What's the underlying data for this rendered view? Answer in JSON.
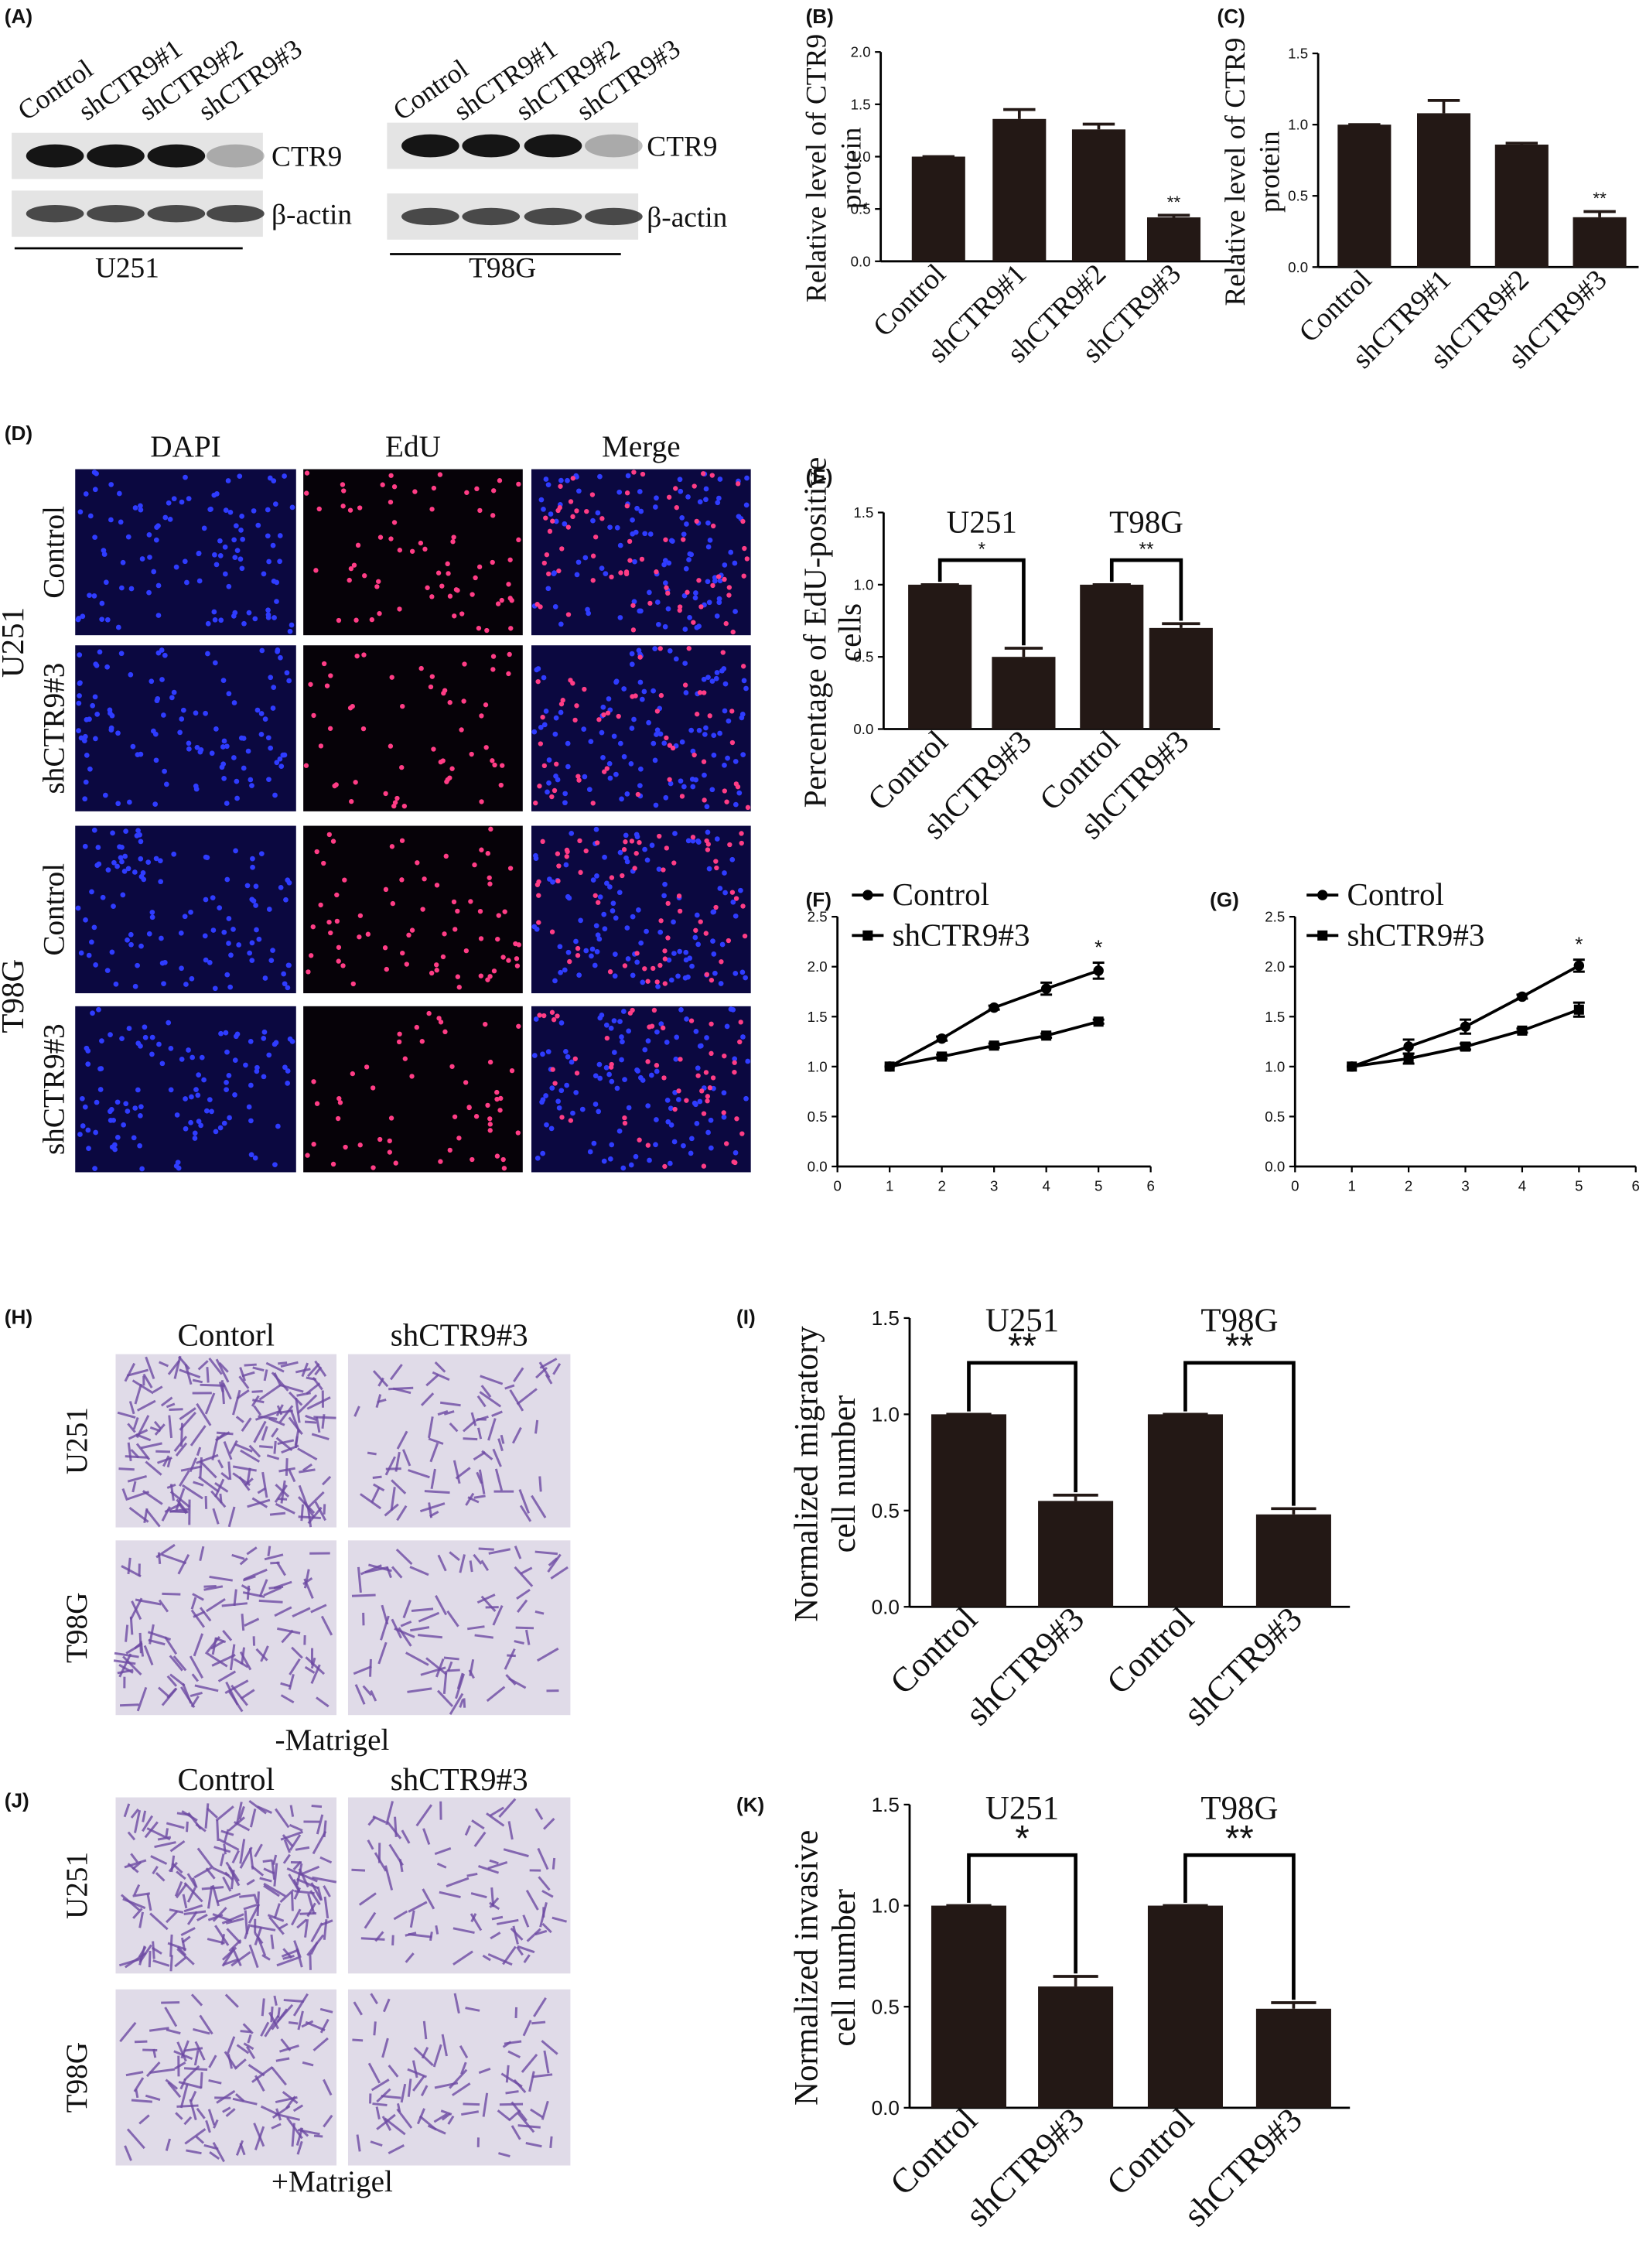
{
  "panels": {
    "A": {
      "label": "(A)",
      "blots": [
        {
          "lanes": [
            "Control",
            "shCTR9#1",
            "shCTR9#2",
            "shCTR9#3"
          ],
          "proteins": [
            "CTR9",
            "β-actin"
          ],
          "cell_line": "U251"
        },
        {
          "lanes": [
            "Control",
            "shCTR9#1",
            "shCTR9#2",
            "shCTR9#3"
          ],
          "proteins": [
            "CTR9",
            "β-actin"
          ],
          "cell_line": "T98G"
        }
      ]
    },
    "D": {
      "label": "(D)",
      "columns": [
        "DAPI",
        "EdU",
        "Merge"
      ],
      "groups": [
        {
          "name": "U251",
          "rows": [
            "Control",
            "shCTR9#3"
          ]
        },
        {
          "name": "T98G",
          "rows": [
            "Control",
            "shCTR9#3"
          ]
        }
      ]
    },
    "H": {
      "label": "(H)",
      "columns": [
        "Contorl",
        "shCTR9#3"
      ],
      "rows": [
        "U251",
        "T98G"
      ],
      "condition": "-Matrigel"
    },
    "J": {
      "label": "(J)",
      "columns": [
        "Control",
        "shCTR9#3"
      ],
      "rows": [
        "U251",
        "T98G"
      ],
      "condition": "+Matrigel"
    }
  },
  "chart_data": [
    {
      "type": "bar",
      "panel": "(B)",
      "ylabel": [
        "Relative level of CTR9",
        "protein"
      ],
      "categories": [
        "Control",
        "shCTR9#1",
        "shCTR9#2",
        "shCTR9#3"
      ],
      "values": [
        1.0,
        1.36,
        1.26,
        0.42
      ],
      "errors": [
        0,
        0.09,
        0.05,
        0.02
      ],
      "significance": [
        null,
        null,
        null,
        "**"
      ],
      "color": "#231815",
      "ylim": [
        0,
        2
      ],
      "yticks": [
        {
          "value": 0,
          "label": "0.0"
        },
        0.5,
        {
          "value": 1,
          "label": "1.0"
        },
        1.5,
        {
          "value": 2,
          "label": "2.0"
        }
      ]
    },
    {
      "type": "bar",
      "panel": "(C)",
      "ylabel": [
        "Relative level of CTR9",
        "protein"
      ],
      "categories": [
        "Control",
        "shCTR9#1",
        "shCTR9#2",
        "shCTR9#3"
      ],
      "values": [
        1.0,
        1.08,
        0.86,
        0.35
      ],
      "errors": [
        0,
        0.09,
        0.01,
        0.04
      ],
      "significance": [
        null,
        null,
        null,
        "**"
      ],
      "color": "#231815",
      "ylim": [
        0,
        1.5
      ],
      "yticks": [
        {
          "value": 0,
          "label": "0.0"
        },
        0.5,
        {
          "value": 1,
          "label": "1.0"
        },
        1.5
      ]
    },
    {
      "type": "bar",
      "panel": "(E)",
      "ylabel": [
        "Percentage of EdU-positive",
        "cells"
      ],
      "categories": [
        "Control",
        "shCTR9#3",
        "Control",
        "shCTR9#3"
      ],
      "values": [
        1.0,
        0.5,
        1.0,
        0.7
      ],
      "errors": [
        0,
        0.06,
        0,
        0.03
      ],
      "groups": [
        "U251",
        "T98G"
      ],
      "group_significance": [
        "*",
        "**"
      ],
      "color": "#231815",
      "ylim": [
        0,
        1.5
      ],
      "yticks": [
        {
          "value": 0,
          "label": "0.0"
        },
        0.5,
        {
          "value": 1,
          "label": "1.0"
        },
        1.5
      ]
    },
    {
      "type": "line",
      "panel": "(F)",
      "x": [
        1,
        2,
        3,
        4,
        5
      ],
      "series": [
        {
          "name": "Control",
          "color": "#000000",
          "marker": "circle",
          "values": [
            1.0,
            1.28,
            1.59,
            1.78,
            1.96
          ],
          "errors": [
            0,
            0.02,
            0.02,
            0.06,
            0.08
          ]
        },
        {
          "name": "shCTR9#3",
          "color": "#000000",
          "marker": "square",
          "values": [
            1.0,
            1.1,
            1.21,
            1.31,
            1.45
          ],
          "errors": [
            0,
            0.02,
            0.02,
            0.02,
            0.02
          ]
        }
      ],
      "significance": [
        null,
        null,
        null,
        null,
        "*"
      ],
      "xlim": [
        0,
        6
      ],
      "xticks": [
        0,
        1,
        2,
        3,
        4,
        5,
        6
      ],
      "ylim": [
        0,
        2.5
      ],
      "yticks": [
        {
          "value": 0,
          "label": "0.0"
        },
        0.5,
        {
          "value": 1,
          "label": "1.0"
        },
        1.5,
        {
          "value": 2,
          "label": "2.0"
        },
        2.5
      ]
    },
    {
      "type": "line",
      "panel": "(G)",
      "x": [
        1,
        2,
        3,
        4,
        5
      ],
      "series": [
        {
          "name": "Control",
          "color": "#000000",
          "marker": "circle",
          "values": [
            1.0,
            1.2,
            1.4,
            1.7,
            2.01
          ],
          "errors": [
            0,
            0.07,
            0.07,
            0.02,
            0.06
          ]
        },
        {
          "name": "shCTR9#3",
          "color": "#000000",
          "marker": "square",
          "values": [
            1.0,
            1.08,
            1.2,
            1.36,
            1.57
          ],
          "errors": [
            0,
            0.05,
            0.03,
            0.02,
            0.07
          ]
        }
      ],
      "significance": [
        null,
        null,
        null,
        null,
        "*"
      ],
      "xlim": [
        0,
        6
      ],
      "xticks": [
        0,
        1,
        2,
        3,
        4,
        5,
        6
      ],
      "ylim": [
        0,
        2.5
      ],
      "yticks": [
        {
          "value": 0,
          "label": "0.0"
        },
        0.5,
        {
          "value": 1,
          "label": "1.0"
        },
        1.5,
        {
          "value": 2,
          "label": "2.0"
        },
        2.5
      ]
    },
    {
      "type": "bar",
      "panel": "(I)",
      "ylabel": [
        "Normalized migratory",
        "cell number"
      ],
      "categories": [
        "Control",
        "shCTR9#3",
        "Control",
        "shCTR9#3"
      ],
      "values": [
        1.0,
        0.55,
        1.0,
        0.48
      ],
      "errors": [
        0,
        0.03,
        0,
        0.03
      ],
      "groups": [
        "U251",
        "T98G"
      ],
      "group_significance": [
        "**",
        "**"
      ],
      "color": "#231815",
      "ylim": [
        0,
        1.5
      ],
      "yticks": [
        {
          "value": 0,
          "label": "0.0"
        },
        0.5,
        {
          "value": 1,
          "label": "1.0"
        },
        1.5
      ]
    },
    {
      "type": "bar",
      "panel": "(K)",
      "ylabel": [
        "Normalized invasive",
        "cell number"
      ],
      "categories": [
        "Control",
        "shCTR9#3",
        "Control",
        "shCTR9#3"
      ],
      "values": [
        1.0,
        0.6,
        1.0,
        0.49
      ],
      "errors": [
        0,
        0.05,
        0,
        0.03
      ],
      "groups": [
        "U251",
        "T98G"
      ],
      "group_significance": [
        "*",
        "**"
      ],
      "color": "#231815",
      "ylim": [
        0,
        1.5
      ],
      "yticks": [
        {
          "value": 0,
          "label": "0.0"
        },
        0.5,
        {
          "value": 1,
          "label": "1.0"
        },
        1.5
      ]
    }
  ]
}
